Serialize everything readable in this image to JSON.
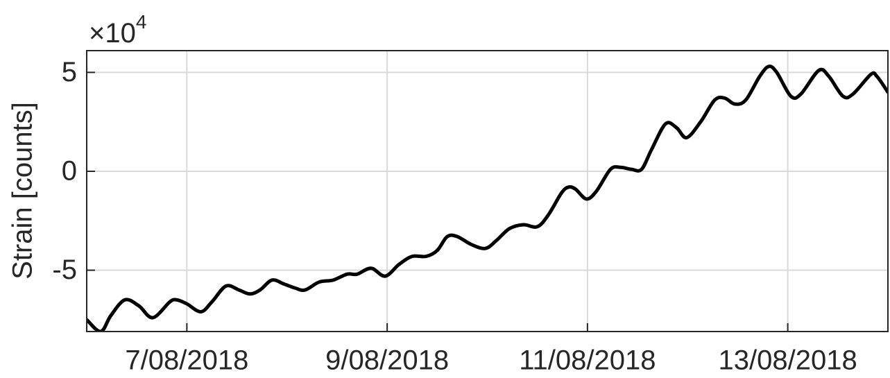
{
  "chart_data": {
    "type": "line",
    "y_label": "Strain [counts]",
    "y_multiplier": {
      "base": "×10",
      "exponent": "4"
    },
    "x": [
      6.0,
      6.14,
      6.24,
      6.38,
      6.52,
      6.66,
      6.83,
      6.9,
      7.0,
      7.14,
      7.25,
      7.39,
      7.52,
      7.63,
      7.73,
      7.85,
      7.97,
      8.08,
      8.18,
      8.32,
      8.46,
      8.6,
      8.7,
      8.84,
      8.98,
      9.12,
      9.25,
      9.39,
      9.5,
      9.6,
      9.7,
      9.84,
      9.98,
      10.09,
      10.22,
      10.36,
      10.5,
      10.61,
      10.74,
      10.81,
      10.88,
      10.99,
      11.09,
      11.23,
      11.33,
      11.44,
      11.54,
      11.64,
      11.78,
      11.89,
      11.99,
      12.13,
      12.27,
      12.37,
      12.47,
      12.58,
      12.72,
      12.81,
      12.89,
      13.03,
      13.13,
      13.31,
      13.41,
      13.55,
      13.65,
      13.83,
      13.89,
      14.0
    ],
    "series": [
      {
        "color": "#000000",
        "values": [
          -7.5,
          -8.1,
          -7.3,
          -6.5,
          -6.8,
          -7.4,
          -6.6,
          -6.5,
          -6.7,
          -7.1,
          -6.6,
          -5.8,
          -6.0,
          -6.2,
          -6.0,
          -5.5,
          -5.7,
          -5.9,
          -6.0,
          -5.6,
          -5.5,
          -5.2,
          -5.2,
          -4.9,
          -5.3,
          -4.7,
          -4.3,
          -4.3,
          -4.0,
          -3.3,
          -3.3,
          -3.7,
          -3.9,
          -3.5,
          -2.9,
          -2.7,
          -2.8,
          -2.2,
          -1.1,
          -0.8,
          -0.9,
          -1.4,
          -1.0,
          0.1,
          0.2,
          0.1,
          0.1,
          1.1,
          2.4,
          2.2,
          1.7,
          2.5,
          3.6,
          3.7,
          3.4,
          3.6,
          4.8,
          5.3,
          5.0,
          3.8,
          3.9,
          5.1,
          4.8,
          3.8,
          3.9,
          4.9,
          4.8,
          4.0
        ]
      }
    ],
    "xlim": [
      6,
      14
    ],
    "xticks": [
      {
        "value": 7,
        "label": "7/08/2018"
      },
      {
        "value": 9,
        "label": "9/08/2018"
      },
      {
        "value": 11,
        "label": "11/08/2018"
      },
      {
        "value": 13,
        "label": "13/08/2018"
      }
    ],
    "ylim": [
      -8.1,
      6.1
    ],
    "yticks": [
      -5,
      0,
      5
    ],
    "grid": true
  }
}
